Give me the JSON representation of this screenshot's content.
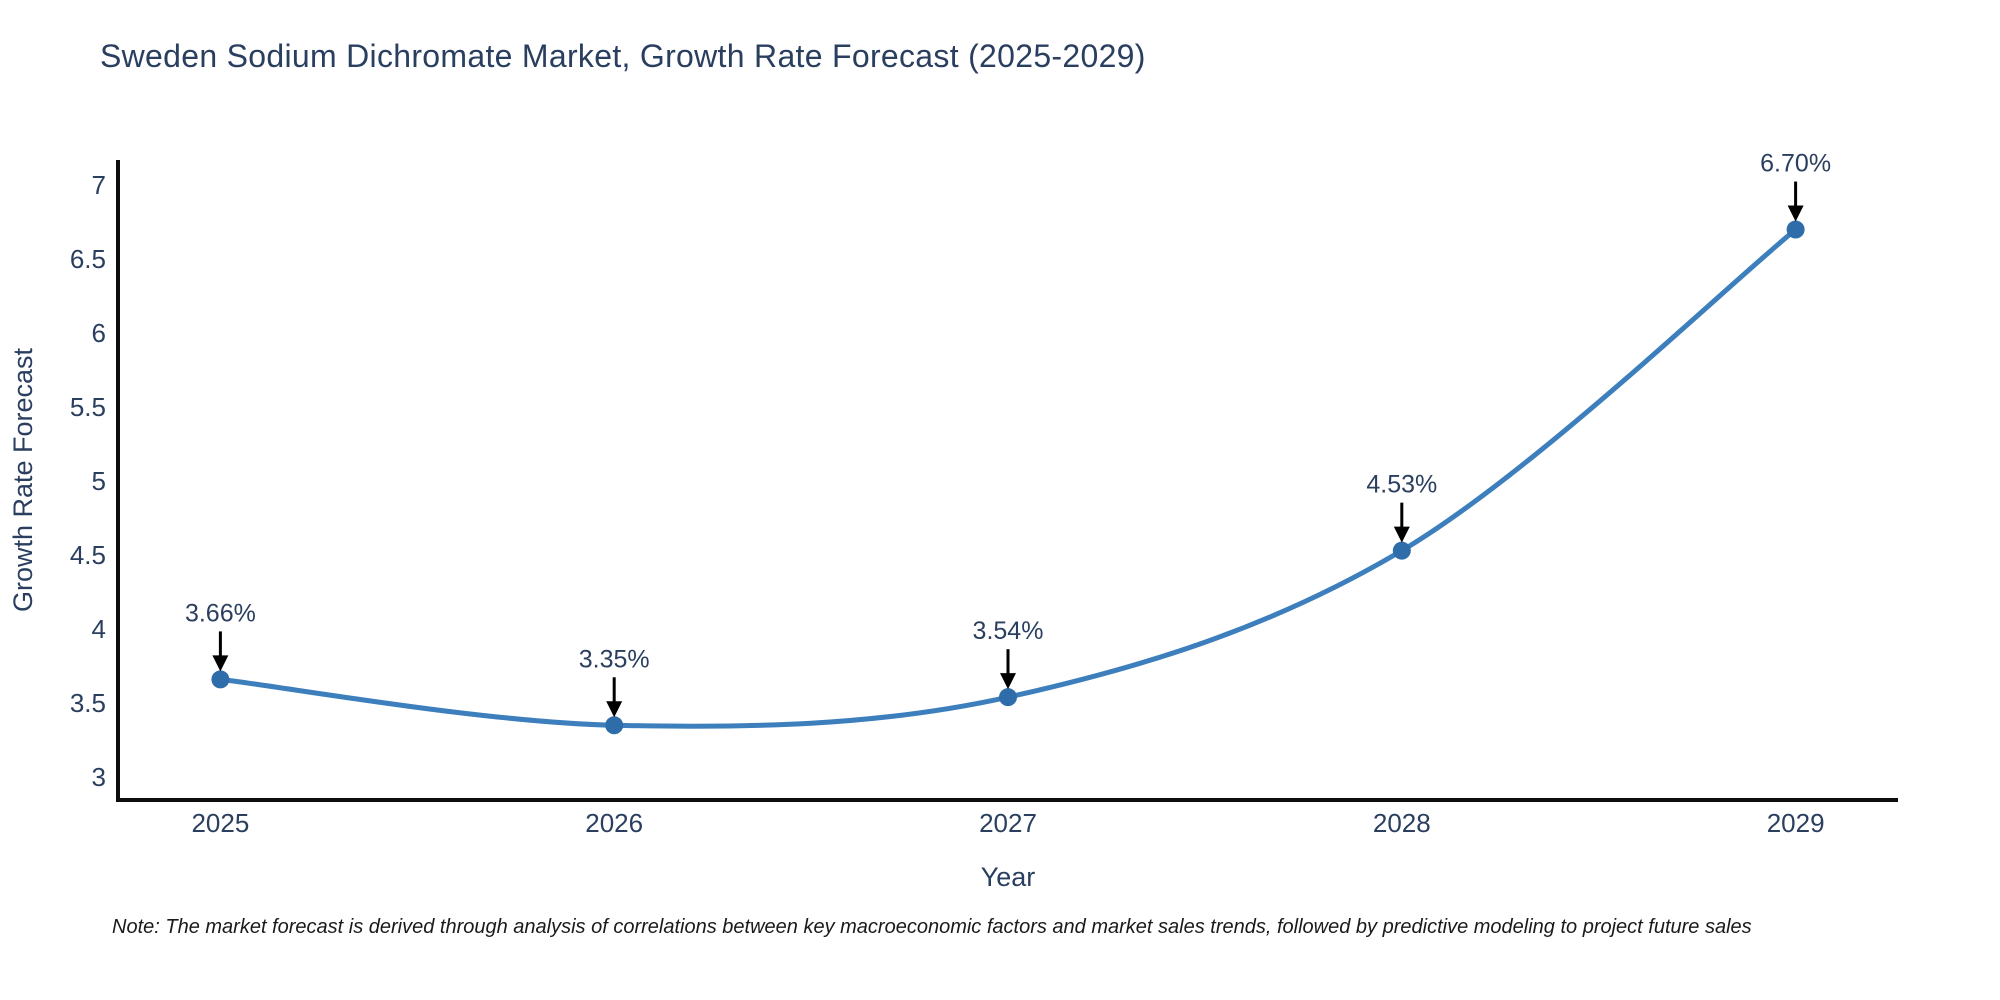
{
  "note": "Note: The market forecast is derived through analysis of correlations between key macroeconomic factors and market sales trends, followed by predictive modeling to project future sales",
  "chart_data": {
    "type": "line",
    "title": "Sweden Sodium Dichromate Market, Growth Rate Forecast (2025-2029)",
    "xlabel": "Year",
    "ylabel": "Growth Rate Forecast",
    "categories": [
      2025,
      2026,
      2027,
      2028,
      2029
    ],
    "x_tick_labels": [
      "2025",
      "2026",
      "2027",
      "2028",
      "2029"
    ],
    "values": [
      3.66,
      3.35,
      3.54,
      4.53,
      6.7
    ],
    "point_labels": [
      "3.66%",
      "3.35%",
      "3.54%",
      "4.53%",
      "6.70%"
    ],
    "yticks": [
      3,
      3.5,
      4,
      4.5,
      5,
      5.5,
      6,
      6.5,
      7
    ],
    "y_tick_labels": [
      "3",
      "3.5",
      "4",
      "4.5",
      "5",
      "5.5",
      "6",
      "6.5",
      "7"
    ],
    "ylim": [
      2.845,
      7.17
    ],
    "xlim": [
      2024.74,
      2029.26
    ],
    "line_shape": "spline",
    "grid": false,
    "legend": "none",
    "colors": {
      "line": "#3d7fbc",
      "marker": "#2e6da9",
      "annotation_text": "#2a3f5f",
      "annotation_arrow": "#000000",
      "axis_line": "#0d0d0d",
      "tick_text": "#2a3f5f",
      "title_text": "#2a3f5f",
      "note_text": "#1a1a1a",
      "background": "#ffffff"
    }
  }
}
